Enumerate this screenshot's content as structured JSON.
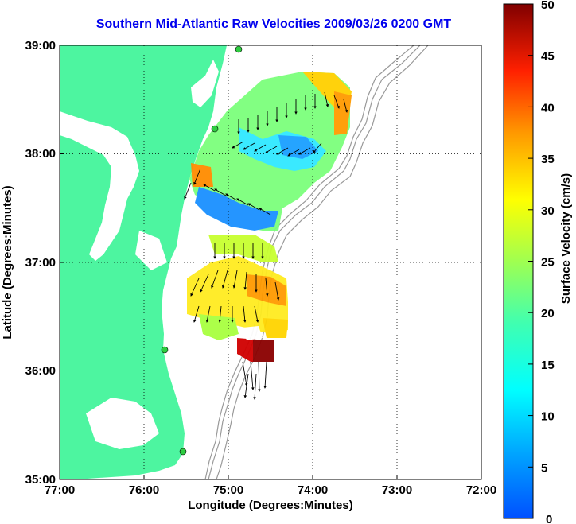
{
  "title": "Southern Mid-Atlantic Raw Velocities 2009/03/26 0200 GMT",
  "axes": {
    "xlabel": "Longitude (Degrees:Minutes)",
    "ylabel": "Latitude (Degrees:Minutes)",
    "x_ticks": [
      "77:00",
      "76:00",
      "75:00",
      "74:00",
      "73:00",
      "72:00"
    ],
    "y_ticks": [
      "39:00",
      "38:00",
      "37:00",
      "36:00",
      "35:00"
    ],
    "x_range": [
      -77,
      -72
    ],
    "y_range": [
      35,
      39
    ],
    "grid": "dotted"
  },
  "colorbar": {
    "label": "Surface Velocity (cm/s)",
    "ticks": [
      "50",
      "45",
      "40",
      "35",
      "30",
      "25",
      "20",
      "15",
      "10",
      "5",
      "0"
    ],
    "range": [
      0,
      50
    ]
  },
  "colors": {
    "land": "#4df5a0",
    "title": "#0000ee",
    "station": "#2ecc40"
  }
}
